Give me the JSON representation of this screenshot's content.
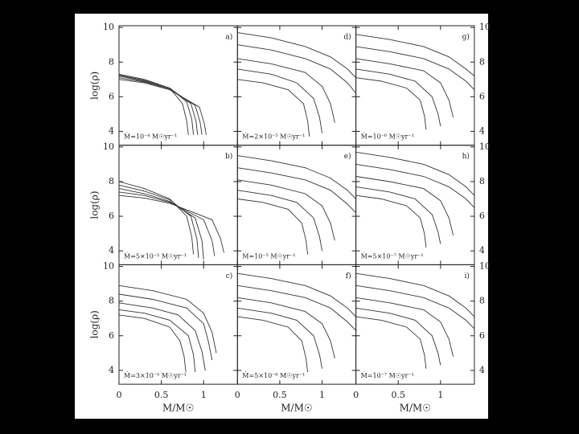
{
  "chart_data": [
    {
      "type": "line",
      "panel_label": "a)",
      "annotation": "Ṁ=10⁻⁴ M☉yr⁻¹",
      "ylabel": "log(ρ)",
      "ytick_labels": "left",
      "xtick_labels": false,
      "color": "#333333",
      "xlim": [
        0,
        1.4
      ],
      "ylim": [
        3.2,
        10.1
      ],
      "xticks": [
        0,
        0.5,
        1
      ],
      "yticks": [
        4,
        6,
        8,
        10
      ],
      "series": [
        {
          "x": [
            0,
            0.3,
            0.6,
            0.75,
            0.8,
            0.82
          ],
          "values": [
            7.3,
            7.0,
            6.5,
            5.6,
            4.6,
            3.8
          ]
        },
        {
          "x": [
            0,
            0.3,
            0.6,
            0.8,
            0.86,
            0.88
          ],
          "values": [
            7.25,
            6.95,
            6.5,
            5.7,
            4.7,
            3.8
          ]
        },
        {
          "x": [
            0,
            0.3,
            0.6,
            0.85,
            0.91,
            0.93
          ],
          "values": [
            7.2,
            6.9,
            6.5,
            5.6,
            4.6,
            3.8
          ]
        },
        {
          "x": [
            0,
            0.3,
            0.6,
            0.9,
            0.96,
            0.98
          ],
          "values": [
            7.1,
            6.85,
            6.45,
            5.5,
            4.5,
            3.8
          ]
        },
        {
          "x": [
            0,
            0.3,
            0.6,
            0.95,
            1.01,
            1.03
          ],
          "values": [
            7.0,
            6.8,
            6.4,
            5.4,
            4.4,
            3.8
          ]
        }
      ]
    },
    {
      "type": "line",
      "panel_label": "d)",
      "annotation": "Ṁ=2×10⁻⁵ M☉yr⁻¹",
      "ytick_labels": "none",
      "xtick_labels": false,
      "color": "#333333",
      "xlim": [
        0,
        1.4
      ],
      "ylim": [
        3.2,
        10.1
      ],
      "xticks": [
        0,
        0.5,
        1
      ],
      "yticks": [
        4,
        6,
        8,
        10
      ],
      "series": [
        {
          "x": [
            0,
            0.4,
            0.8,
            1.1,
            1.3,
            1.4
          ],
          "values": [
            9.7,
            9.4,
            8.9,
            8.3,
            7.6,
            7.1
          ]
        },
        {
          "x": [
            0,
            0.4,
            0.8,
            1.1,
            1.3,
            1.4
          ],
          "values": [
            9.0,
            8.7,
            8.2,
            7.6,
            6.8,
            6.2
          ]
        },
        {
          "x": [
            0,
            0.4,
            0.8,
            1.0,
            1.1,
            1.15
          ],
          "values": [
            8.2,
            7.9,
            7.4,
            6.6,
            5.6,
            4.5
          ]
        },
        {
          "x": [
            0,
            0.4,
            0.7,
            0.9,
            0.97,
            1.0
          ],
          "values": [
            7.6,
            7.3,
            6.8,
            5.9,
            4.8,
            3.9
          ]
        },
        {
          "x": [
            0,
            0.3,
            0.6,
            0.78,
            0.83,
            0.85
          ],
          "values": [
            7.0,
            6.8,
            6.4,
            5.6,
            4.6,
            3.7
          ]
        }
      ]
    },
    {
      "type": "line",
      "panel_label": "g)",
      "annotation": "Ṁ=10⁻⁶ M☉yr⁻¹",
      "ytick_labels": "right",
      "xtick_labels": false,
      "color": "#333333",
      "xlim": [
        0,
        1.4
      ],
      "ylim": [
        3.2,
        10.1
      ],
      "xticks": [
        0,
        0.5,
        1
      ],
      "yticks": [
        4,
        6,
        8,
        10
      ],
      "series": [
        {
          "x": [
            0,
            0.4,
            0.8,
            1.1,
            1.3,
            1.4
          ],
          "values": [
            9.6,
            9.3,
            8.9,
            8.3,
            7.6,
            7.2
          ]
        },
        {
          "x": [
            0,
            0.4,
            0.8,
            1.1,
            1.3,
            1.4
          ],
          "values": [
            8.9,
            8.6,
            8.2,
            7.6,
            6.9,
            6.4
          ]
        },
        {
          "x": [
            0,
            0.4,
            0.8,
            1.0,
            1.1,
            1.15
          ],
          "values": [
            8.2,
            7.9,
            7.5,
            6.8,
            5.8,
            4.8
          ]
        },
        {
          "x": [
            0,
            0.4,
            0.7,
            0.9,
            0.97,
            1.0
          ],
          "values": [
            7.6,
            7.3,
            6.9,
            6.0,
            5.0,
            4.3
          ]
        },
        {
          "x": [
            0,
            0.3,
            0.6,
            0.76,
            0.81,
            0.83
          ],
          "values": [
            7.1,
            6.9,
            6.5,
            5.8,
            4.9,
            4.1
          ]
        }
      ]
    },
    {
      "type": "line",
      "panel_label": "b)",
      "annotation": "Ṁ=5×10⁻⁵ M☉yr⁻¹",
      "ylabel": "log(ρ)",
      "ytick_labels": "left",
      "xtick_labels": false,
      "color": "#333333",
      "xlim": [
        0,
        1.4
      ],
      "ylim": [
        3.2,
        10.1
      ],
      "xticks": [
        0,
        0.5,
        1
      ],
      "yticks": [
        4,
        6,
        8,
        10
      ],
      "series": [
        {
          "x": [
            0,
            0.3,
            0.6,
            0.8,
            0.86,
            0.88
          ],
          "values": [
            8.0,
            7.6,
            7.0,
            6.0,
            4.8,
            3.8
          ]
        },
        {
          "x": [
            0,
            0.3,
            0.6,
            0.85,
            0.92,
            0.94
          ],
          "values": [
            7.8,
            7.45,
            6.95,
            6.0,
            4.7,
            3.6
          ]
        },
        {
          "x": [
            0,
            0.3,
            0.6,
            0.9,
            0.98,
            1.0
          ],
          "values": [
            7.6,
            7.3,
            6.85,
            5.9,
            4.6,
            3.5
          ]
        },
        {
          "x": [
            0,
            0.3,
            0.6,
            1.0,
            1.1,
            1.13
          ],
          "values": [
            7.4,
            7.2,
            6.8,
            5.8,
            4.6,
            3.7
          ]
        },
        {
          "x": [
            0,
            0.3,
            0.6,
            1.1,
            1.2,
            1.24
          ],
          "values": [
            7.2,
            7.05,
            6.75,
            5.8,
            4.7,
            3.9
          ]
        }
      ]
    },
    {
      "type": "line",
      "panel_label": "e)",
      "annotation": "Ṁ=10⁻⁵ M☉yr⁻¹",
      "ytick_labels": "none",
      "xtick_labels": false,
      "color": "#333333",
      "xlim": [
        0,
        1.4
      ],
      "ylim": [
        3.2,
        10.1
      ],
      "xticks": [
        0,
        0.5,
        1
      ],
      "yticks": [
        4,
        6,
        8,
        10
      ],
      "series": [
        {
          "x": [
            0,
            0.4,
            0.8,
            1.1,
            1.3,
            1.4
          ],
          "values": [
            9.5,
            9.2,
            8.8,
            8.2,
            7.5,
            7.0
          ]
        },
        {
          "x": [
            0,
            0.4,
            0.8,
            1.1,
            1.3,
            1.4
          ],
          "values": [
            8.8,
            8.5,
            8.1,
            7.5,
            6.7,
            6.2
          ]
        },
        {
          "x": [
            0,
            0.4,
            0.8,
            1.0,
            1.1,
            1.15
          ],
          "values": [
            8.1,
            7.8,
            7.3,
            6.6,
            5.6,
            4.6
          ]
        },
        {
          "x": [
            0,
            0.4,
            0.7,
            0.9,
            0.97,
            1.0
          ],
          "values": [
            7.5,
            7.2,
            6.8,
            5.9,
            4.8,
            4.0
          ]
        },
        {
          "x": [
            0,
            0.3,
            0.6,
            0.76,
            0.81,
            0.83
          ],
          "values": [
            7.0,
            6.8,
            6.4,
            5.6,
            4.6,
            3.8
          ]
        }
      ]
    },
    {
      "type": "line",
      "panel_label": "h)",
      "annotation": "Ṁ=5×10⁻⁷ M☉yr⁻¹",
      "ytick_labels": "right",
      "xtick_labels": false,
      "color": "#333333",
      "xlim": [
        0,
        1.4
      ],
      "ylim": [
        3.2,
        10.1
      ],
      "xticks": [
        0,
        0.5,
        1
      ],
      "yticks": [
        4,
        6,
        8,
        10
      ],
      "series": [
        {
          "x": [
            0,
            0.4,
            0.8,
            1.1,
            1.3,
            1.4
          ],
          "values": [
            9.7,
            9.4,
            9.0,
            8.4,
            7.7,
            7.2
          ]
        },
        {
          "x": [
            0,
            0.4,
            0.8,
            1.1,
            1.3,
            1.4
          ],
          "values": [
            9.0,
            8.7,
            8.3,
            7.7,
            7.0,
            6.5
          ]
        },
        {
          "x": [
            0,
            0.4,
            0.8,
            1.0,
            1.1,
            1.15
          ],
          "values": [
            8.3,
            8.0,
            7.6,
            6.9,
            5.9,
            4.9
          ]
        },
        {
          "x": [
            0,
            0.4,
            0.7,
            0.9,
            0.97,
            1.0
          ],
          "values": [
            7.7,
            7.4,
            7.0,
            6.1,
            5.1,
            4.4
          ]
        },
        {
          "x": [
            0,
            0.3,
            0.6,
            0.76,
            0.81,
            0.83
          ],
          "values": [
            7.2,
            7.0,
            6.6,
            5.9,
            5.0,
            4.2
          ]
        }
      ]
    },
    {
      "type": "line",
      "panel_label": "c)",
      "annotation": "Ṁ=3×10⁻⁵ M☉yr⁻¹",
      "ylabel": "log(ρ)",
      "xlabel": "M/M☉",
      "ytick_labels": "left",
      "xtick_labels": true,
      "color": "#333333",
      "xlim": [
        0,
        1.4
      ],
      "ylim": [
        3.2,
        10.1
      ],
      "xticks": [
        0,
        0.5,
        1
      ],
      "yticks": [
        4,
        6,
        8,
        10
      ],
      "series": [
        {
          "x": [
            0,
            0.4,
            0.8,
            1.0,
            1.1,
            1.15
          ],
          "values": [
            8.9,
            8.6,
            8.1,
            7.3,
            6.2,
            5.0
          ]
        },
        {
          "x": [
            0,
            0.4,
            0.8,
            1.0,
            1.06,
            1.1
          ],
          "values": [
            8.4,
            8.1,
            7.6,
            6.7,
            5.6,
            4.6
          ]
        },
        {
          "x": [
            0,
            0.4,
            0.7,
            0.9,
            0.98,
            1.02
          ],
          "values": [
            7.9,
            7.6,
            7.2,
            6.3,
            5.1,
            4.0
          ]
        },
        {
          "x": [
            0,
            0.3,
            0.6,
            0.82,
            0.88,
            0.9
          ],
          "values": [
            7.5,
            7.3,
            6.9,
            6.0,
            4.9,
            3.9
          ]
        },
        {
          "x": [
            0,
            0.3,
            0.6,
            0.72,
            0.77,
            0.79
          ],
          "values": [
            7.2,
            7.0,
            6.5,
            5.7,
            4.8,
            3.9
          ]
        }
      ]
    },
    {
      "type": "line",
      "panel_label": "f)",
      "annotation": "Ṁ=5×10⁻⁶ M☉yr⁻¹",
      "xlabel": "M/M☉",
      "ytick_labels": "none",
      "xtick_labels": true,
      "color": "#333333",
      "xlim": [
        0,
        1.4
      ],
      "ylim": [
        3.2,
        10.1
      ],
      "xticks": [
        0,
        0.5,
        1
      ],
      "yticks": [
        4,
        6,
        8,
        10
      ],
      "series": [
        {
          "x": [
            0,
            0.4,
            0.8,
            1.1,
            1.3,
            1.4
          ],
          "values": [
            9.6,
            9.3,
            8.9,
            8.3,
            7.6,
            7.1
          ]
        },
        {
          "x": [
            0,
            0.4,
            0.8,
            1.1,
            1.3,
            1.4
          ],
          "values": [
            8.9,
            8.6,
            8.2,
            7.6,
            6.8,
            6.3
          ]
        },
        {
          "x": [
            0,
            0.4,
            0.8,
            1.0,
            1.1,
            1.15
          ],
          "values": [
            8.2,
            7.9,
            7.4,
            6.7,
            5.7,
            4.7
          ]
        },
        {
          "x": [
            0,
            0.4,
            0.7,
            0.9,
            0.97,
            1.0
          ],
          "values": [
            7.6,
            7.3,
            6.9,
            6.0,
            4.9,
            4.1
          ]
        },
        {
          "x": [
            0,
            0.3,
            0.6,
            0.76,
            0.81,
            0.83
          ],
          "values": [
            7.1,
            6.9,
            6.5,
            5.7,
            4.7,
            3.9
          ]
        }
      ]
    },
    {
      "type": "line",
      "panel_label": "i)",
      "annotation": "Ṁ=10⁻⁷ M☉yr⁻¹",
      "xlabel": "M/M☉",
      "ytick_labels": "right",
      "xtick_labels": true,
      "color": "#333333",
      "xlim": [
        0,
        1.4
      ],
      "ylim": [
        3.2,
        10.1
      ],
      "xticks": [
        0,
        0.5,
        1
      ],
      "yticks": [
        4,
        6,
        8,
        10
      ],
      "series": [
        {
          "x": [
            0,
            0.4,
            0.8,
            1.1,
            1.3,
            1.4
          ],
          "values": [
            9.6,
            9.3,
            8.9,
            8.3,
            7.6,
            7.1
          ]
        },
        {
          "x": [
            0,
            0.4,
            0.8,
            1.1,
            1.3,
            1.4
          ],
          "values": [
            8.9,
            8.6,
            8.2,
            7.6,
            6.9,
            6.4
          ]
        },
        {
          "x": [
            0,
            0.4,
            0.8,
            1.0,
            1.1,
            1.15
          ],
          "values": [
            8.2,
            7.9,
            7.5,
            6.8,
            5.8,
            4.8
          ]
        },
        {
          "x": [
            0,
            0.4,
            0.7,
            0.9,
            0.97,
            1.0
          ],
          "values": [
            7.6,
            7.3,
            6.9,
            6.0,
            5.0,
            4.3
          ]
        },
        {
          "x": [
            0,
            0.3,
            0.6,
            0.76,
            0.81,
            0.83
          ],
          "values": [
            7.1,
            6.9,
            6.5,
            5.8,
            4.9,
            4.1
          ]
        }
      ]
    }
  ]
}
